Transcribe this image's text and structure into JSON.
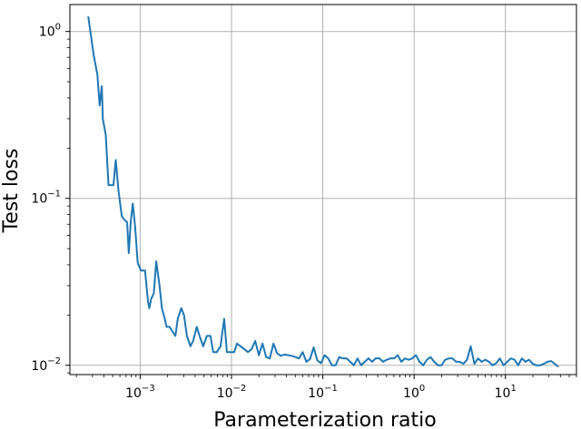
{
  "chart_data": {
    "type": "line",
    "title": "",
    "xlabel": "Parameterization ratio",
    "ylabel": "Test loss",
    "xscale": "log",
    "yscale": "log",
    "xlim": [
      0.00017,
      60
    ],
    "ylim": [
      0.0088,
      1.45
    ],
    "grid": true,
    "legend": "none",
    "colors": {
      "series": "#1f77b4",
      "grid": "#b0b0b0",
      "axes": "#000000"
    },
    "x_ticks": [
      {
        "value": 0.001,
        "base": "10",
        "exp": "−3"
      },
      {
        "value": 0.01,
        "base": "10",
        "exp": "−2"
      },
      {
        "value": 0.1,
        "base": "10",
        "exp": "−1"
      },
      {
        "value": 1,
        "base": "10",
        "exp": "0"
      },
      {
        "value": 10,
        "base": "10",
        "exp": "1"
      }
    ],
    "y_ticks": [
      {
        "value": 0.01,
        "base": "10",
        "exp": "−2"
      },
      {
        "value": 0.1,
        "base": "10",
        "exp": "−1"
      },
      {
        "value": 1,
        "base": "10",
        "exp": "0"
      }
    ],
    "series": [
      {
        "x": [
          0.00027,
          0.00031,
          0.00034,
          0.00036,
          0.00038,
          0.00039,
          0.00042,
          0.00045,
          0.0005,
          0.00051,
          0.00054,
          0.00058,
          0.00063,
          0.00068,
          0.00072,
          0.00075,
          0.00079,
          0.00083,
          0.00088,
          0.00094,
          0.00102,
          0.00106,
          0.00113,
          0.00122,
          0.00126,
          0.00132,
          0.00141,
          0.0015,
          0.00163,
          0.00173,
          0.00186,
          0.00195,
          0.0021,
          0.00225,
          0.00243,
          0.00258,
          0.00282,
          0.00302,
          0.00325,
          0.00355,
          0.0038,
          0.00417,
          0.00447,
          0.0049,
          0.00537,
          0.00589,
          0.00631,
          0.00692,
          0.00759,
          0.00832,
          0.00891,
          0.00933,
          0.00977,
          0.01072,
          0.01148,
          0.01259,
          0.0138,
          0.01514,
          0.0166,
          0.0182,
          0.01995,
          0.02188,
          0.02399,
          0.0263,
          0.02884,
          0.03162,
          0.03467,
          0.03802,
          0.04169,
          0.04571,
          0.05012,
          0.05495,
          0.06026,
          0.06607,
          0.07244,
          0.07943,
          0.0871,
          0.0955,
          0.1047,
          0.1148,
          0.1259,
          0.138,
          0.1514,
          0.166,
          0.182,
          0.1995,
          0.2188,
          0.2399,
          0.263,
          0.2884,
          0.3162,
          0.3467,
          0.3802,
          0.4169,
          0.4571,
          0.5012,
          0.5495,
          0.6026,
          0.6607,
          0.7244,
          0.7943,
          0.871,
          0.955,
          1.047,
          1.148,
          1.259,
          1.38,
          1.514,
          1.66,
          1.82,
          1.995,
          2.188,
          2.399,
          2.63,
          2.884,
          3.162,
          3.467,
          3.802,
          4.169,
          4.571,
          5.012,
          5.495,
          6.026,
          6.607,
          7.244,
          7.943,
          8.71,
          9.55,
          10.47,
          11.48,
          12.59,
          13.8,
          15.14,
          16.6,
          18.2,
          19.95,
          21.88,
          23.99,
          26.3,
          28.84,
          31.62,
          34.67,
          38.02
        ],
        "y": [
          1.23,
          0.72,
          0.55,
          0.36,
          0.47,
          0.3,
          0.24,
          0.12,
          0.12,
          0.12,
          0.17,
          0.11,
          0.078,
          0.074,
          0.072,
          0.047,
          0.073,
          0.093,
          0.068,
          0.041,
          0.037,
          0.037,
          0.037,
          0.024,
          0.022,
          0.025,
          0.027,
          0.042,
          0.03,
          0.022,
          0.019,
          0.017,
          0.017,
          0.016,
          0.015,
          0.019,
          0.022,
          0.02,
          0.015,
          0.013,
          0.014,
          0.017,
          0.015,
          0.013,
          0.015,
          0.015,
          0.012,
          0.012,
          0.013,
          0.019,
          0.012,
          0.012,
          0.012,
          0.012,
          0.0135,
          0.013,
          0.0125,
          0.012,
          0.0125,
          0.014,
          0.0115,
          0.0135,
          0.0112,
          0.011,
          0.0135,
          0.0118,
          0.0114,
          0.0116,
          0.0115,
          0.0114,
          0.0112,
          0.011,
          0.012,
          0.0105,
          0.0109,
          0.0128,
          0.0107,
          0.0103,
          0.0115,
          0.011,
          0.01,
          0.01,
          0.0112,
          0.011,
          0.011,
          0.0105,
          0.01,
          0.011,
          0.01,
          0.0105,
          0.011,
          0.0105,
          0.011,
          0.011,
          0.0105,
          0.0108,
          0.011,
          0.011,
          0.0115,
          0.0105,
          0.011,
          0.0108,
          0.011,
          0.0115,
          0.0105,
          0.01,
          0.0108,
          0.0112,
          0.0105,
          0.01,
          0.01,
          0.0108,
          0.011,
          0.011,
          0.0105,
          0.0105,
          0.0102,
          0.0108,
          0.013,
          0.0102,
          0.011,
          0.0105,
          0.0108,
          0.0105,
          0.01,
          0.0103,
          0.011,
          0.01,
          0.0105,
          0.011,
          0.0108,
          0.01,
          0.011,
          0.0105,
          0.0108,
          0.0102,
          0.01,
          0.01,
          0.0102,
          0.0105,
          0.0106,
          0.0102,
          0.0098
        ]
      }
    ]
  }
}
